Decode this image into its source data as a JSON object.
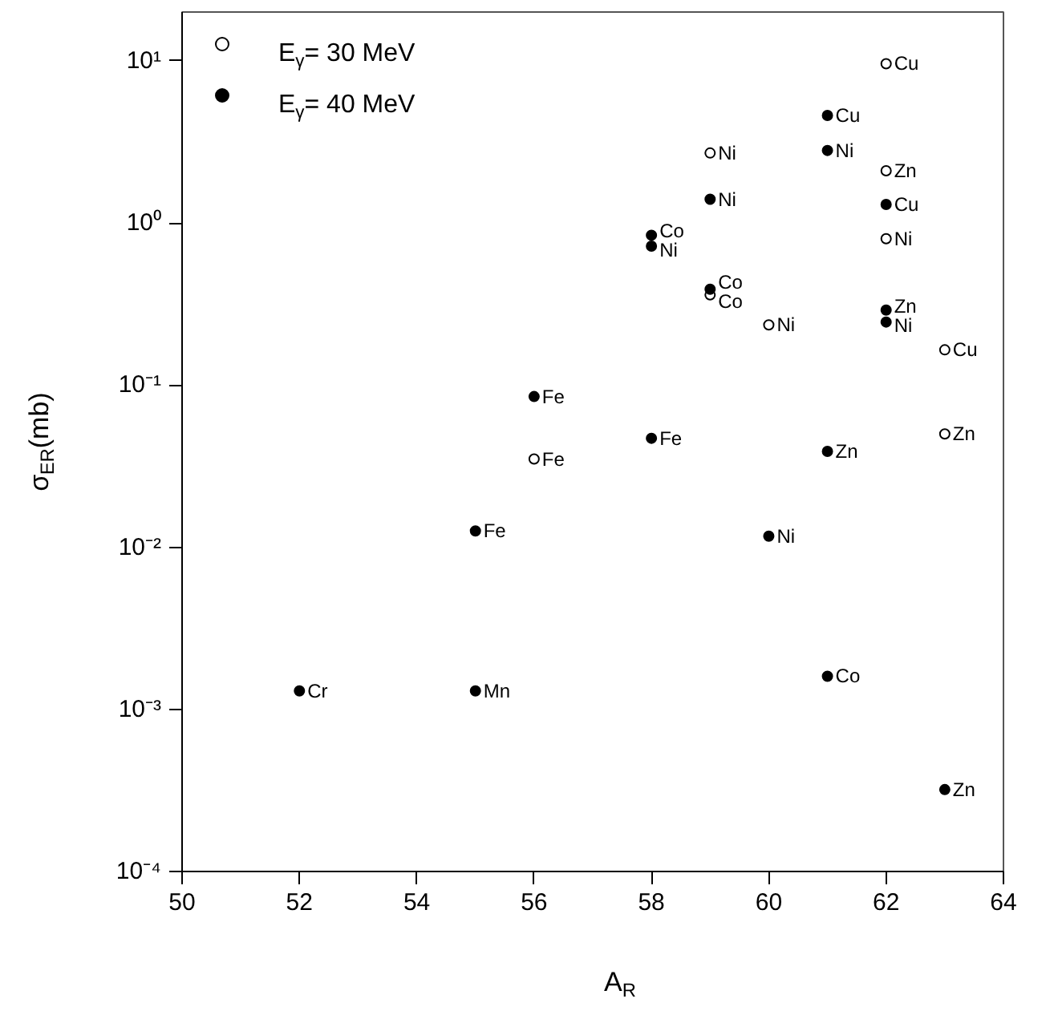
{
  "chart_data": {
    "type": "scatter",
    "xlabel": "A$_{R}$",
    "ylabel": "σ$_{ER}$(mb)",
    "log": "y",
    "grid": false,
    "legend": "top left",
    "xlim": [
      50,
      64
    ],
    "xticks": [
      50,
      52,
      54,
      56,
      58,
      60,
      62,
      64
    ],
    "ylim": [
      0.0001,
      20
    ],
    "yticks": [
      {
        "value": 0.0001,
        "label": "10⁻⁴"
      },
      {
        "value": 0.001,
        "label": "10⁻³"
      },
      {
        "value": 0.01,
        "label": "10⁻²"
      },
      {
        "value": 0.1,
        "label": "10⁻¹"
      },
      {
        "value": 1,
        "label": "10⁰"
      },
      {
        "value": 10,
        "label": "10¹"
      }
    ],
    "series": [
      {
        "name": "E$_{γ}$= 30 MeV",
        "color": "#ffffff",
        "marker": "circle",
        "x": [
          62,
          59,
          62,
          62,
          59,
          60,
          63,
          63,
          56
        ],
        "values": [
          9.6,
          2.7,
          2.1,
          0.8,
          0.36,
          0.235,
          0.165,
          0.05,
          0.035
        ]
      },
      {
        "name": "E$_{γ}$= 40 MeV",
        "color": "#000000",
        "marker": "circle",
        "x": [
          61,
          61,
          59,
          62,
          58,
          58,
          59,
          62,
          62,
          56,
          58,
          61,
          55,
          60,
          52,
          55,
          61,
          63
        ],
        "values": [
          4.6,
          2.8,
          1.4,
          1.3,
          0.84,
          0.72,
          0.39,
          0.29,
          0.245,
          0.085,
          0.047,
          0.039,
          0.0126,
          0.0117,
          0.0013,
          0.0013,
          0.0016,
          0.00032
        ]
      }
    ],
    "annotations": [
      {
        "text": "Cu",
        "x": 62,
        "y": 9.6
      },
      {
        "text": "Ni",
        "x": 59,
        "y": 2.7
      },
      {
        "text": "Zn",
        "x": 62,
        "y": 2.1
      },
      {
        "text": "Ni",
        "x": 62,
        "y": 0.8
      },
      {
        "text": "Co",
        "x": 59,
        "y": 0.36
      },
      {
        "text": "Ni",
        "x": 60,
        "y": 0.235
      },
      {
        "text": "Cu",
        "x": 63,
        "y": 0.165
      },
      {
        "text": "Zn",
        "x": 63,
        "y": 0.05
      },
      {
        "text": "Fe",
        "x": 56,
        "y": 0.035
      },
      {
        "text": "Cu",
        "x": 61,
        "y": 4.6
      },
      {
        "text": "Ni",
        "x": 61,
        "y": 2.8
      },
      {
        "text": "Ni",
        "x": 59,
        "y": 1.4
      },
      {
        "text": "Cu",
        "x": 62,
        "y": 1.3
      },
      {
        "text": "Co",
        "x": 58,
        "y": 0.84
      },
      {
        "text": "Ni",
        "x": 58,
        "y": 0.72
      },
      {
        "text": "Co",
        "x": 59,
        "y": 0.39
      },
      {
        "text": "Zn",
        "x": 62,
        "y": 0.29
      },
      {
        "text": "Ni",
        "x": 62,
        "y": 0.245
      },
      {
        "text": "Fe",
        "x": 56,
        "y": 0.085
      },
      {
        "text": "Fe",
        "x": 58,
        "y": 0.047
      },
      {
        "text": "Zn",
        "x": 61,
        "y": 0.039
      },
      {
        "text": "Fe",
        "x": 55,
        "y": 0.0126
      },
      {
        "text": "Ni",
        "x": 60,
        "y": 0.0117
      },
      {
        "text": "Cr",
        "x": 52,
        "y": 0.0013
      },
      {
        "text": "Mn",
        "x": 55,
        "y": 0.0013
      },
      {
        "text": "Co",
        "x": 61,
        "y": 0.0016
      },
      {
        "text": "Zn",
        "x": 63,
        "y": 0.00032
      }
    ]
  }
}
